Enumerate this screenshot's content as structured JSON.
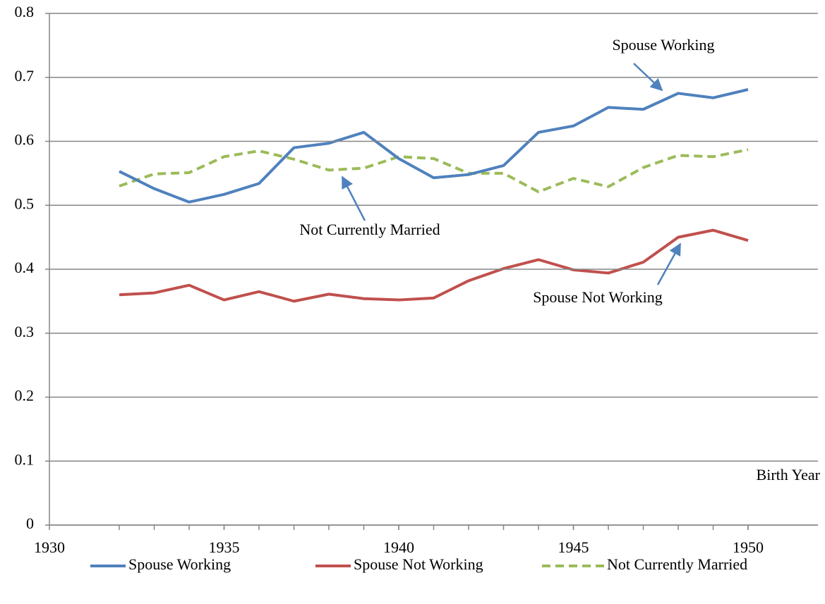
{
  "chart_data": {
    "type": "line",
    "x": [
      1932,
      1933,
      1934,
      1935,
      1936,
      1937,
      1938,
      1939,
      1940,
      1941,
      1942,
      1943,
      1944,
      1945,
      1946,
      1947,
      1948,
      1949,
      1950
    ],
    "series": [
      {
        "name": "Spouse Working",
        "color": "#4f81bd",
        "dash": false,
        "values": [
          0.553,
          0.526,
          0.505,
          0.517,
          0.534,
          0.59,
          0.597,
          0.614,
          0.573,
          0.543,
          0.548,
          0.562,
          0.614,
          0.624,
          0.653,
          0.65,
          0.675,
          0.668,
          0.681
        ]
      },
      {
        "name": "Spouse Not Working",
        "color": "#c0504d",
        "dash": false,
        "values": [
          0.36,
          0.363,
          0.375,
          0.352,
          0.365,
          0.35,
          0.361,
          0.354,
          0.352,
          0.355,
          0.382,
          0.401,
          0.415,
          0.399,
          0.394,
          0.411,
          0.45,
          0.461,
          0.445
        ]
      },
      {
        "name": "Not Currently Married",
        "color": "#9bbb59",
        "dash": true,
        "values": [
          0.53,
          0.549,
          0.551,
          0.576,
          0.585,
          0.572,
          0.555,
          0.558,
          0.576,
          0.573,
          0.55,
          0.55,
          0.521,
          0.542,
          0.529,
          0.559,
          0.578,
          0.576,
          0.587
        ]
      }
    ],
    "xlabel": "Birth Year",
    "xlim": [
      1930,
      1952
    ],
    "xticks": [
      1930,
      1935,
      1940,
      1945,
      1950
    ],
    "ylim": [
      0,
      0.8
    ],
    "yticks": [
      0,
      0.1,
      0.2,
      0.3,
      0.4,
      0.5,
      0.6,
      0.7,
      0.8
    ],
    "grid": true,
    "legend": "bottom",
    "annotations": [
      {
        "text": "Spouse Working"
      },
      {
        "text": "Not Currently Married"
      },
      {
        "text": "Spouse Not Working"
      }
    ]
  }
}
